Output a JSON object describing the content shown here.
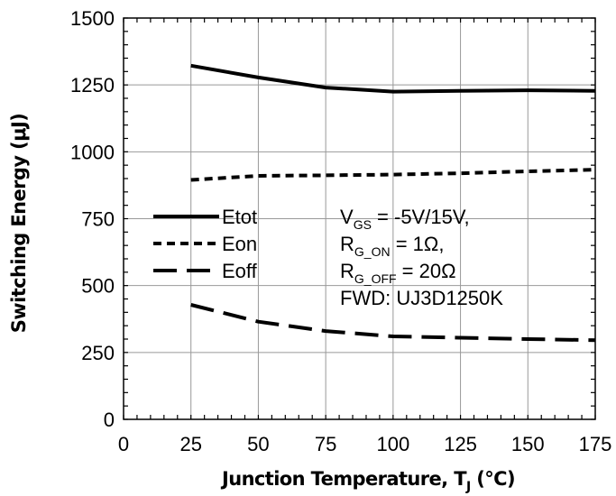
{
  "chart_data": {
    "type": "line",
    "title": "",
    "xlabel": "Junction Temperature, T",
    "xlabel_sub": "J",
    "xlabel_suffix": " (°C)",
    "ylabel": "Switching Energy (μJ)",
    "xlim": [
      0,
      175
    ],
    "ylim": [
      0,
      1500
    ],
    "x_ticks": [
      "0",
      "25",
      "50",
      "75",
      "100",
      "125",
      "150",
      "175"
    ],
    "y_ticks": [
      "0",
      "250",
      "500",
      "750",
      "1000",
      "1250",
      "1500"
    ],
    "grid": true,
    "legend_position": "middle-left",
    "series": [
      {
        "name": "Etot",
        "style": "solid",
        "x": [
          25,
          50,
          75,
          100,
          125,
          150,
          175
        ],
        "y": [
          1322,
          1278,
          1240,
          1225,
          1228,
          1230,
          1228
        ]
      },
      {
        "name": "Eon",
        "style": "short-dash",
        "x": [
          25,
          50,
          75,
          100,
          125,
          150,
          175
        ],
        "y": [
          895,
          910,
          912,
          915,
          920,
          927,
          933
        ]
      },
      {
        "name": "Eoff",
        "style": "long-dash",
        "x": [
          25,
          50,
          75,
          100,
          125,
          150,
          175
        ],
        "y": [
          428,
          365,
          330,
          310,
          305,
          300,
          296
        ]
      }
    ],
    "annotations": [
      {
        "main": "V",
        "sub": "GS",
        "rest": " = -5V/15V,"
      },
      {
        "main": "R",
        "sub": "G_ON",
        "rest": " = 1Ω,"
      },
      {
        "main": "R",
        "sub": "G_OFF",
        "rest": " = 20Ω"
      },
      {
        "main": "FWD: UJ3D1250K",
        "sub": "",
        "rest": ""
      }
    ]
  }
}
